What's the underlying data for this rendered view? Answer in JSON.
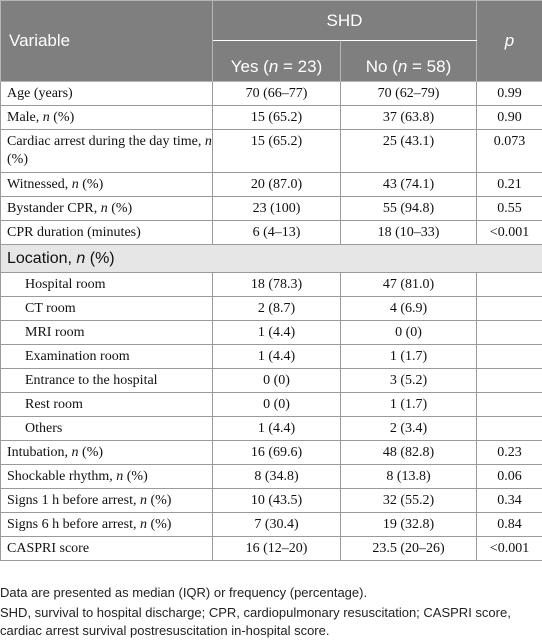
{
  "header": {
    "variable": "Variable",
    "group": "SHD",
    "p": "p",
    "yes": "Yes (n = 23)",
    "no": "No (n = 58)"
  },
  "rows_top": [
    {
      "label": "Age (years)",
      "yes": "70 (66–77)",
      "no": "70 (62–79)",
      "p": "0.99"
    },
    {
      "label": "Male, n (%)",
      "yes": "15 (65.2)",
      "no": "37 (63.8)",
      "p": "0.90"
    },
    {
      "label": "Cardiac arrest during the day time, n (%)",
      "yes": "15 (65.2)",
      "no": "25 (43.1)",
      "p": "0.073"
    },
    {
      "label": "Witnessed, n (%)",
      "yes": "20 (87.0)",
      "no": "43 (74.1)",
      "p": "0.21"
    },
    {
      "label": "Bystander CPR, n (%)",
      "yes": "23 (100)",
      "no": "55 (94.8)",
      "p": "0.55"
    },
    {
      "label": "CPR duration (minutes)",
      "yes": "6 (4–13)",
      "no": "18 (10–33)",
      "p": "<0.001"
    }
  ],
  "location_header": "Location, n (%)",
  "location_rows": [
    {
      "label": "Hospital room",
      "yes": "18 (78.3)",
      "no": "47 (81.0)",
      "p": ""
    },
    {
      "label": "CT room",
      "yes": "2 (8.7)",
      "no": "4 (6.9)",
      "p": ""
    },
    {
      "label": "MRI room",
      "yes": "1 (4.4)",
      "no": "0 (0)",
      "p": ""
    },
    {
      "label": "Examination room",
      "yes": "1 (4.4)",
      "no": "1 (1.7)",
      "p": ""
    },
    {
      "label": "Entrance to the hospital",
      "yes": "0 (0)",
      "no": "3 (5.2)",
      "p": ""
    },
    {
      "label": "Rest room",
      "yes": "0 (0)",
      "no": "1 (1.7)",
      "p": ""
    },
    {
      "label": "Others",
      "yes": "1 (4.4)",
      "no": "2 (3.4)",
      "p": ""
    }
  ],
  "rows_bottom": [
    {
      "label": "Intubation, n (%)",
      "yes": "16 (69.6)",
      "no": "48 (82.8)",
      "p": "0.23"
    },
    {
      "label": "Shockable rhythm, n (%)",
      "yes": "8 (34.8)",
      "no": "8 (13.8)",
      "p": "0.06"
    },
    {
      "label": "Signs 1 h before arrest, n (%)",
      "yes": "10 (43.5)",
      "no": "32 (55.2)",
      "p": "0.34"
    },
    {
      "label": "Signs 6 h before arrest, n (%)",
      "yes": "7 (30.4)",
      "no": "19 (32.8)",
      "p": "0.84"
    },
    {
      "label": "CASPRI score",
      "yes": "16 (12–20)",
      "no": "23.5 (20–26)",
      "p": "<0.001"
    }
  ],
  "footnotes": {
    "note1": "Data are presented as median (IQR) or frequency (percentage).",
    "note2": "SHD, survival to hospital discharge; CPR, cardiopulmonary resuscitation; CASPRI score, cardiac arrest survival postresuscitation in-hospital score."
  }
}
